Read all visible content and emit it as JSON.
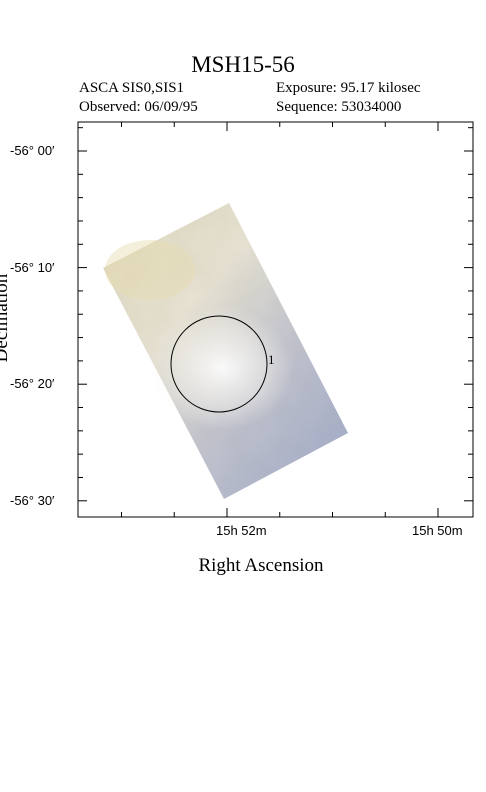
{
  "header": {
    "title": "MSH15-56",
    "instrument": "ASCA SIS0,SIS1",
    "observed": "Observed: 06/09/95",
    "exposure": "Exposure: 95.17 kilosec",
    "sequence": "Sequence: 53034000"
  },
  "axes": {
    "x_title": "Right Ascension",
    "y_title": "Declination",
    "y_ticks": [
      {
        "label": "-56° 00′",
        "dec_arcmin": 0
      },
      {
        "label": "-56° 10′",
        "dec_arcmin": 10
      },
      {
        "label": "-56° 20′",
        "dec_arcmin": 20
      },
      {
        "label": "-56° 30′",
        "dec_arcmin": 30
      }
    ],
    "x_ticks": [
      {
        "label": "15h 52m",
        "ra_min": 52
      },
      {
        "label": "15h 50m",
        "ra_min": 50
      }
    ]
  },
  "image": {
    "description_colors": {
      "bright": "#f3efe3",
      "mid": "#c9c3ad",
      "blue": "#a6b0cf"
    },
    "source_marker": "1"
  }
}
